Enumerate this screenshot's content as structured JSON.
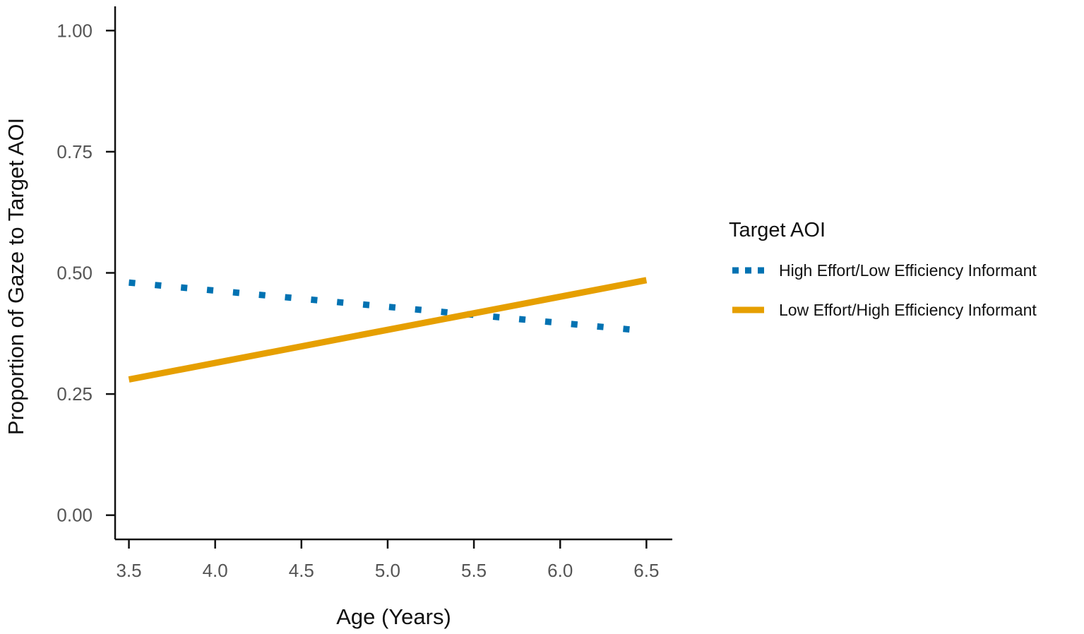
{
  "chart_data": {
    "type": "line",
    "title": "",
    "xlabel": "Age (Years)",
    "ylabel": "Proportion of Gaze to Target AOI",
    "xlim": [
      3.42,
      6.65
    ],
    "ylim": [
      -0.05,
      1.05
    ],
    "x_ticks": [
      3.5,
      4.0,
      4.5,
      5.0,
      5.5,
      6.0,
      6.5
    ],
    "x_tick_labels": [
      "3.5",
      "4.0",
      "4.5",
      "5.0",
      "5.5",
      "6.0",
      "6.5"
    ],
    "y_ticks": [
      0.0,
      0.25,
      0.5,
      0.75,
      1.0
    ],
    "y_tick_labels": [
      "0.00",
      "0.25",
      "0.50",
      "0.75",
      "1.00"
    ],
    "grid": false,
    "legend": {
      "title": "Target AOI",
      "placement": "right"
    },
    "series": [
      {
        "name": "High Effort/Low Efficiency Informant",
        "color": "#0072B2",
        "dash": "dotted",
        "x": [
          3.5,
          6.5
        ],
        "y": [
          0.48,
          0.38
        ]
      },
      {
        "name": "Low Effort/High Efficiency Informant",
        "color": "#E69F00",
        "dash": "solid",
        "x": [
          3.5,
          6.5
        ],
        "y": [
          0.28,
          0.485
        ]
      }
    ]
  }
}
